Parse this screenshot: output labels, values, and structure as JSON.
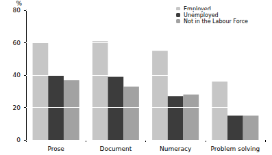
{
  "chart_data": {
    "type": "bar",
    "y_label": "%",
    "categories": [
      "Prose",
      "Document",
      "Numeracy",
      "Problem solving"
    ],
    "series": [
      {
        "name": "Employed",
        "color": "#c6c6c6",
        "values": [
          60,
          61,
          55,
          36
        ]
      },
      {
        "name": "Unemployed",
        "color": "#3c3c3c",
        "values": [
          40,
          39,
          27,
          15
        ]
      },
      {
        "name": "Not in the Labour Force",
        "color": "#a2a2a2",
        "values": [
          37,
          33,
          28,
          15
        ]
      }
    ],
    "ylim": [
      0,
      80
    ],
    "yticks": [
      0,
      20,
      40,
      60,
      80
    ],
    "grid": true,
    "legend": "top-right"
  }
}
